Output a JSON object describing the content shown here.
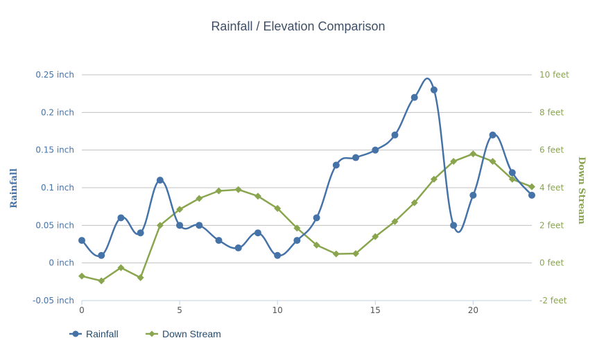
{
  "chart_data": {
    "type": "line",
    "title": "Rainfall / Elevation Comparison",
    "xlabel": "",
    "x": [
      0,
      1,
      2,
      3,
      4,
      5,
      6,
      7,
      8,
      9,
      10,
      11,
      12,
      13,
      14,
      15,
      16,
      17,
      18,
      19,
      20,
      21,
      22,
      23
    ],
    "x_ticks": [
      "0",
      "5",
      "10",
      "15",
      "20"
    ],
    "x_tick_values": [
      0,
      5,
      10,
      15,
      20
    ],
    "xlim": [
      0,
      23
    ],
    "y_axes": {
      "left": {
        "title": "Rainfall",
        "ylim": [
          -0.05,
          0.25
        ],
        "tick_values": [
          -0.05,
          0,
          0.05,
          0.1,
          0.15,
          0.2,
          0.25
        ],
        "tick_labels": [
          "-0.05 inch",
          "0 inch",
          "0.05 inch",
          "0.1 inch",
          "0.15 inch",
          "0.2 inch",
          "0.25 inch"
        ],
        "color": "#4572a7"
      },
      "right": {
        "title": "Down Stream",
        "ylim": [
          -2,
          10
        ],
        "tick_values": [
          -2,
          0,
          2,
          4,
          6,
          8,
          10
        ],
        "tick_labels": [
          "-2 feet",
          "0 feet",
          "2 feet",
          "4 feet",
          "6 feet",
          "8 feet",
          "10 feet"
        ],
        "color": "#89a54e"
      }
    },
    "grid": true,
    "legend_position": "bottom-left",
    "series": [
      {
        "name": "Rainfall",
        "axis": "left",
        "smooth": true,
        "marker": "circle",
        "color": "#4572a7",
        "values": [
          0.03,
          0.01,
          0.06,
          0.04,
          0.11,
          0.05,
          0.05,
          0.03,
          0.02,
          0.04,
          0.01,
          0.03,
          0.06,
          0.13,
          0.14,
          0.15,
          0.17,
          0.22,
          0.23,
          0.05,
          0.09,
          0.17,
          0.12,
          0.09
        ]
      },
      {
        "name": "Down Stream",
        "axis": "right",
        "smooth": false,
        "marker": "diamond",
        "color": "#89a54e",
        "values": [
          -0.7,
          -0.95,
          -0.25,
          -0.78,
          2.0,
          2.85,
          3.43,
          3.83,
          3.9,
          3.55,
          2.9,
          1.85,
          0.95,
          0.48,
          0.5,
          1.4,
          2.2,
          3.2,
          4.45,
          5.4,
          5.8,
          5.4,
          4.45,
          4.05
        ]
      }
    ]
  }
}
